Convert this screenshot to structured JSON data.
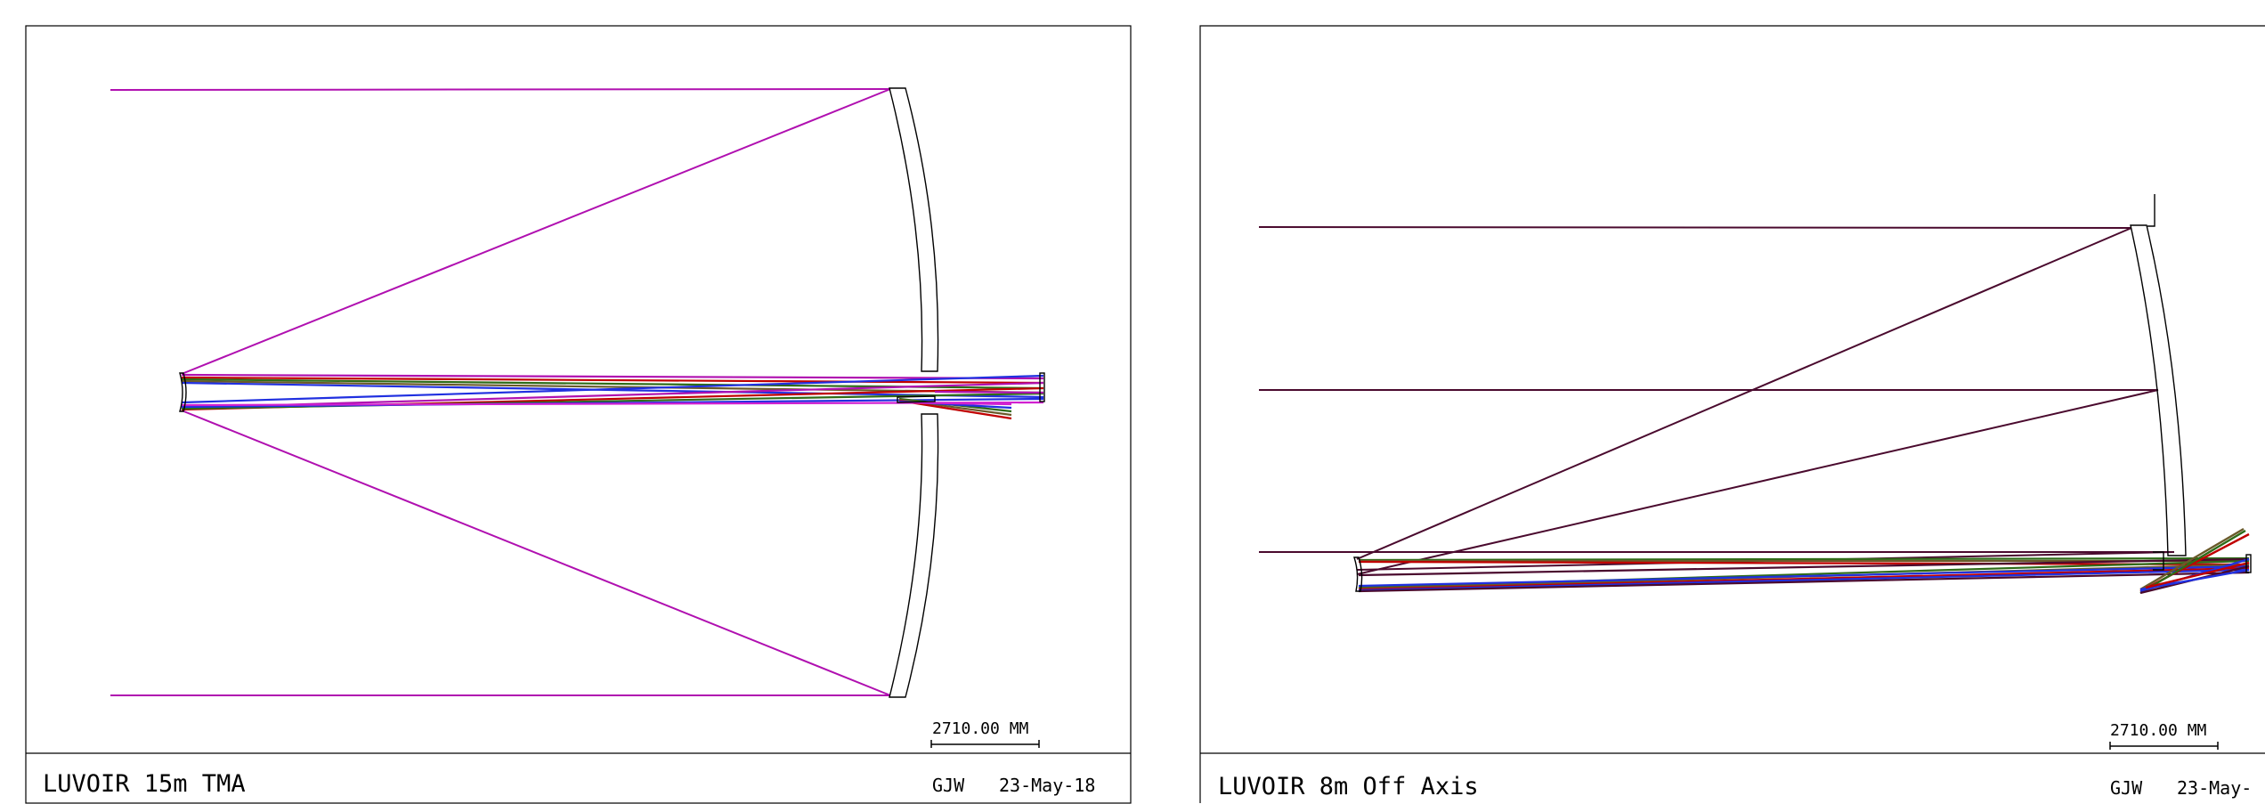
{
  "panels": [
    {
      "title": "LUVOIR 15m TMA",
      "author": "GJW",
      "date": "23-May-18",
      "scale_label": "2710.00 MM"
    },
    {
      "title": "LUVOIR 8m Off Axis",
      "author": "GJW",
      "date": "23-May-",
      "scale_label": "2710.00 MM"
    }
  ],
  "colors": {
    "frame": "#000000",
    "optics": "#000000",
    "tma_marginal_ray": "#b010b0",
    "offaxis_marginal_ray": "#4a0a2e",
    "fan_red": "#c00000",
    "fan_green": "#2e6b18",
    "fan_blue": "#2030e0",
    "fan_magenta": "#d020d0",
    "fan_brown": "#6a5a2a"
  },
  "icons": {
    "tma_optics": "tma-telescope-layout",
    "offaxis_optics": "offaxis-telescope-layout"
  }
}
